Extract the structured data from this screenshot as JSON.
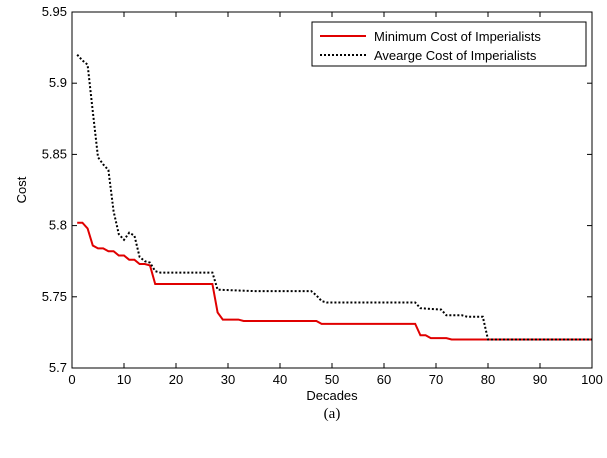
{
  "chart_data": {
    "type": "line",
    "title": "",
    "xlabel": "Decades",
    "ylabel": "Cost",
    "caption": "(a)",
    "xlim": [
      0,
      100
    ],
    "ylim": [
      5.7,
      5.95
    ],
    "xticks": [
      "0",
      "10",
      "20",
      "30",
      "40",
      "50",
      "60",
      "70",
      "80",
      "90",
      "100"
    ],
    "yticks": [
      "5.7",
      "5.75",
      "5.8",
      "5.85",
      "5.9",
      "5.95"
    ],
    "grid": false,
    "legend_position": "top-right",
    "series": [
      {
        "name": "Minimum Cost of Imperialists",
        "color": "#e00000",
        "style": "solid",
        "points": [
          [
            1,
            5.802
          ],
          [
            2,
            5.802
          ],
          [
            3,
            5.798
          ],
          [
            4,
            5.786
          ],
          [
            5,
            5.784
          ],
          [
            6,
            5.784
          ],
          [
            7,
            5.782
          ],
          [
            8,
            5.782
          ],
          [
            9,
            5.779
          ],
          [
            10,
            5.779
          ],
          [
            11,
            5.776
          ],
          [
            12,
            5.776
          ],
          [
            13,
            5.773
          ],
          [
            14,
            5.773
          ],
          [
            15,
            5.772
          ],
          [
            16,
            5.759
          ],
          [
            27,
            5.759
          ],
          [
            28,
            5.739
          ],
          [
            29,
            5.734
          ],
          [
            32,
            5.734
          ],
          [
            33,
            5.733
          ],
          [
            47,
            5.733
          ],
          [
            48,
            5.731
          ],
          [
            66,
            5.731
          ],
          [
            67,
            5.723
          ],
          [
            68,
            5.723
          ],
          [
            69,
            5.721
          ],
          [
            72,
            5.721
          ],
          [
            73,
            5.72
          ],
          [
            100,
            5.72
          ]
        ]
      },
      {
        "name": "Avearge Cost of Imperialists",
        "color": "#000000",
        "style": "dotted",
        "points": [
          [
            1,
            5.92
          ],
          [
            2,
            5.916
          ],
          [
            3,
            5.913
          ],
          [
            4,
            5.88
          ],
          [
            5,
            5.848
          ],
          [
            6,
            5.843
          ],
          [
            7,
            5.839
          ],
          [
            8,
            5.81
          ],
          [
            9,
            5.794
          ],
          [
            10,
            5.79
          ],
          [
            11,
            5.795
          ],
          [
            12,
            5.793
          ],
          [
            13,
            5.778
          ],
          [
            14,
            5.775
          ],
          [
            15,
            5.774
          ],
          [
            16,
            5.768
          ],
          [
            17,
            5.767
          ],
          [
            27,
            5.767
          ],
          [
            28,
            5.755
          ],
          [
            35,
            5.754
          ],
          [
            46,
            5.754
          ],
          [
            47,
            5.751
          ],
          [
            48,
            5.747
          ],
          [
            49,
            5.746
          ],
          [
            66,
            5.746
          ],
          [
            67,
            5.742
          ],
          [
            71,
            5.741
          ],
          [
            72,
            5.737
          ],
          [
            75,
            5.737
          ],
          [
            76,
            5.736
          ],
          [
            79,
            5.736
          ],
          [
            80,
            5.72
          ],
          [
            100,
            5.72
          ]
        ]
      }
    ]
  }
}
